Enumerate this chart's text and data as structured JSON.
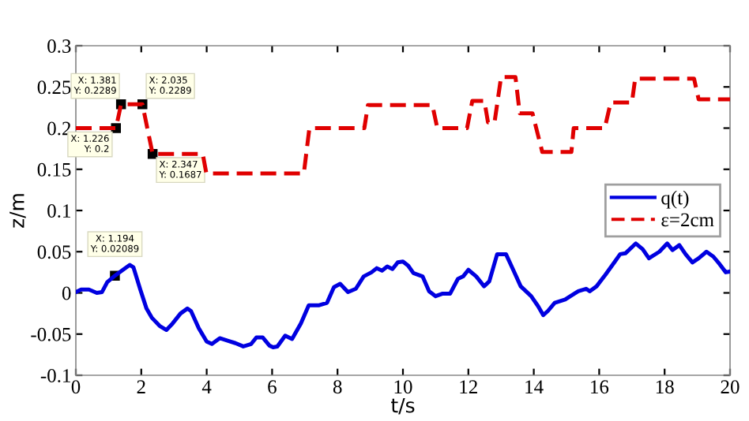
{
  "chart_data": {
    "type": "line",
    "xlabel": "t/s",
    "ylabel": "z/m",
    "xlim": [
      0,
      20
    ],
    "xticks": [
      0,
      2,
      4,
      6,
      8,
      10,
      12,
      14,
      16,
      18,
      20
    ],
    "ylim": [
      -0.1,
      0.3
    ],
    "yticks": [
      -0.1,
      -0.05,
      0,
      0.05,
      0.1,
      0.15,
      0.2,
      0.25,
      0.3
    ],
    "grid": false,
    "legend": "right",
    "marker": "none",
    "series": [
      {
        "name": "q(t)",
        "color": "#0000e0",
        "line_style": "solid",
        "x": [
          0,
          0.16,
          0.4,
          0.64,
          0.8,
          0.96,
          1.194,
          1.44,
          1.65,
          1.76,
          1.97,
          2.16,
          2.32,
          2.56,
          2.77,
          2.96,
          3.2,
          3.41,
          3.52,
          3.76,
          4.0,
          4.16,
          4.4,
          4.64,
          4.88,
          5.12,
          5.36,
          5.52,
          5.71,
          5.92,
          6.03,
          6.16,
          6.4,
          6.61,
          6.88,
          7.12,
          7.44,
          7.68,
          7.89,
          8.08,
          8.32,
          8.56,
          8.8,
          9.04,
          9.2,
          9.36,
          9.52,
          9.68,
          9.84,
          10.0,
          10.16,
          10.32,
          10.6,
          10.8,
          11.0,
          11.2,
          11.44,
          11.68,
          11.84,
          12.0,
          12.24,
          12.48,
          12.64,
          12.88,
          13.15,
          13.36,
          13.6,
          13.92,
          14.13,
          14.29,
          14.43,
          14.64,
          14.96,
          15.12,
          15.36,
          15.6,
          15.71,
          15.92,
          16.19,
          16.48,
          16.64,
          16.8,
          17.12,
          17.33,
          17.52,
          17.84,
          18.08,
          18.24,
          18.45,
          18.64,
          18.85,
          19.04,
          19.28,
          19.49,
          19.68,
          19.87,
          20.0
        ],
        "values": [
          0.001,
          0.004,
          0.004,
          0.0,
          0.001,
          0.013,
          0.02089,
          0.028,
          0.034,
          0.031,
          0.004,
          -0.019,
          -0.03,
          -0.04,
          -0.045,
          -0.037,
          -0.025,
          -0.019,
          -0.022,
          -0.043,
          -0.059,
          -0.062,
          -0.055,
          -0.058,
          -0.061,
          -0.065,
          -0.062,
          -0.054,
          -0.054,
          -0.064,
          -0.066,
          -0.065,
          -0.052,
          -0.056,
          -0.037,
          -0.015,
          -0.015,
          -0.012,
          0.007,
          0.011,
          0.001,
          0.005,
          0.02,
          0.025,
          0.03,
          0.027,
          0.032,
          0.029,
          0.037,
          0.038,
          0.033,
          0.024,
          0.02,
          0.002,
          -0.004,
          -0.001,
          -0.001,
          0.017,
          0.02,
          0.028,
          0.02,
          0.008,
          0.014,
          0.047,
          0.047,
          0.029,
          0.008,
          -0.004,
          -0.016,
          -0.027,
          -0.022,
          -0.012,
          -0.008,
          -0.004,
          0.002,
          0.005,
          0.002,
          0.008,
          0.022,
          0.038,
          0.047,
          0.048,
          0.06,
          0.053,
          0.042,
          0.05,
          0.06,
          0.052,
          0.058,
          0.047,
          0.037,
          0.042,
          0.05,
          0.044,
          0.035,
          0.025,
          0.026
        ]
      },
      {
        "name": "ε=2cm",
        "color": "#e00000",
        "line_style": "dashed",
        "x": [
          0,
          1.226,
          1.381,
          2.035,
          2.347,
          3.88,
          3.99,
          6.97,
          7.14,
          8.82,
          8.93,
          10.9,
          11.05,
          11.96,
          12.12,
          12.49,
          12.6,
          12.8,
          13.0,
          13.44,
          13.57,
          13.96,
          14.26,
          15.15,
          15.22,
          16.17,
          16.35,
          17.0,
          17.1,
          18.9,
          19.04,
          20.0
        ],
        "values": [
          0.2,
          0.2,
          0.2289,
          0.2289,
          0.1687,
          0.1687,
          0.145,
          0.145,
          0.2,
          0.2,
          0.228,
          0.228,
          0.2,
          0.2,
          0.233,
          0.233,
          0.207,
          0.207,
          0.262,
          0.262,
          0.218,
          0.218,
          0.171,
          0.171,
          0.2,
          0.2,
          0.231,
          0.231,
          0.26,
          0.26,
          0.235,
          0.235
        ]
      }
    ],
    "annotations": [
      {
        "text": "X: 1.226\nY: 0.2",
        "x": 1.226,
        "y": 0.2
      },
      {
        "text": "X: 1.381\nY: 0.2289",
        "x": 1.381,
        "y": 0.2289
      },
      {
        "text": "X: 2.035\nY: 0.2289",
        "x": 2.035,
        "y": 0.2289
      },
      {
        "text": "X: 2.347\nY: 0.1687",
        "x": 2.347,
        "y": 0.1687
      },
      {
        "text": "X: 1.194\nY: 0.02089",
        "x": 1.194,
        "y": 0.02089
      }
    ]
  }
}
